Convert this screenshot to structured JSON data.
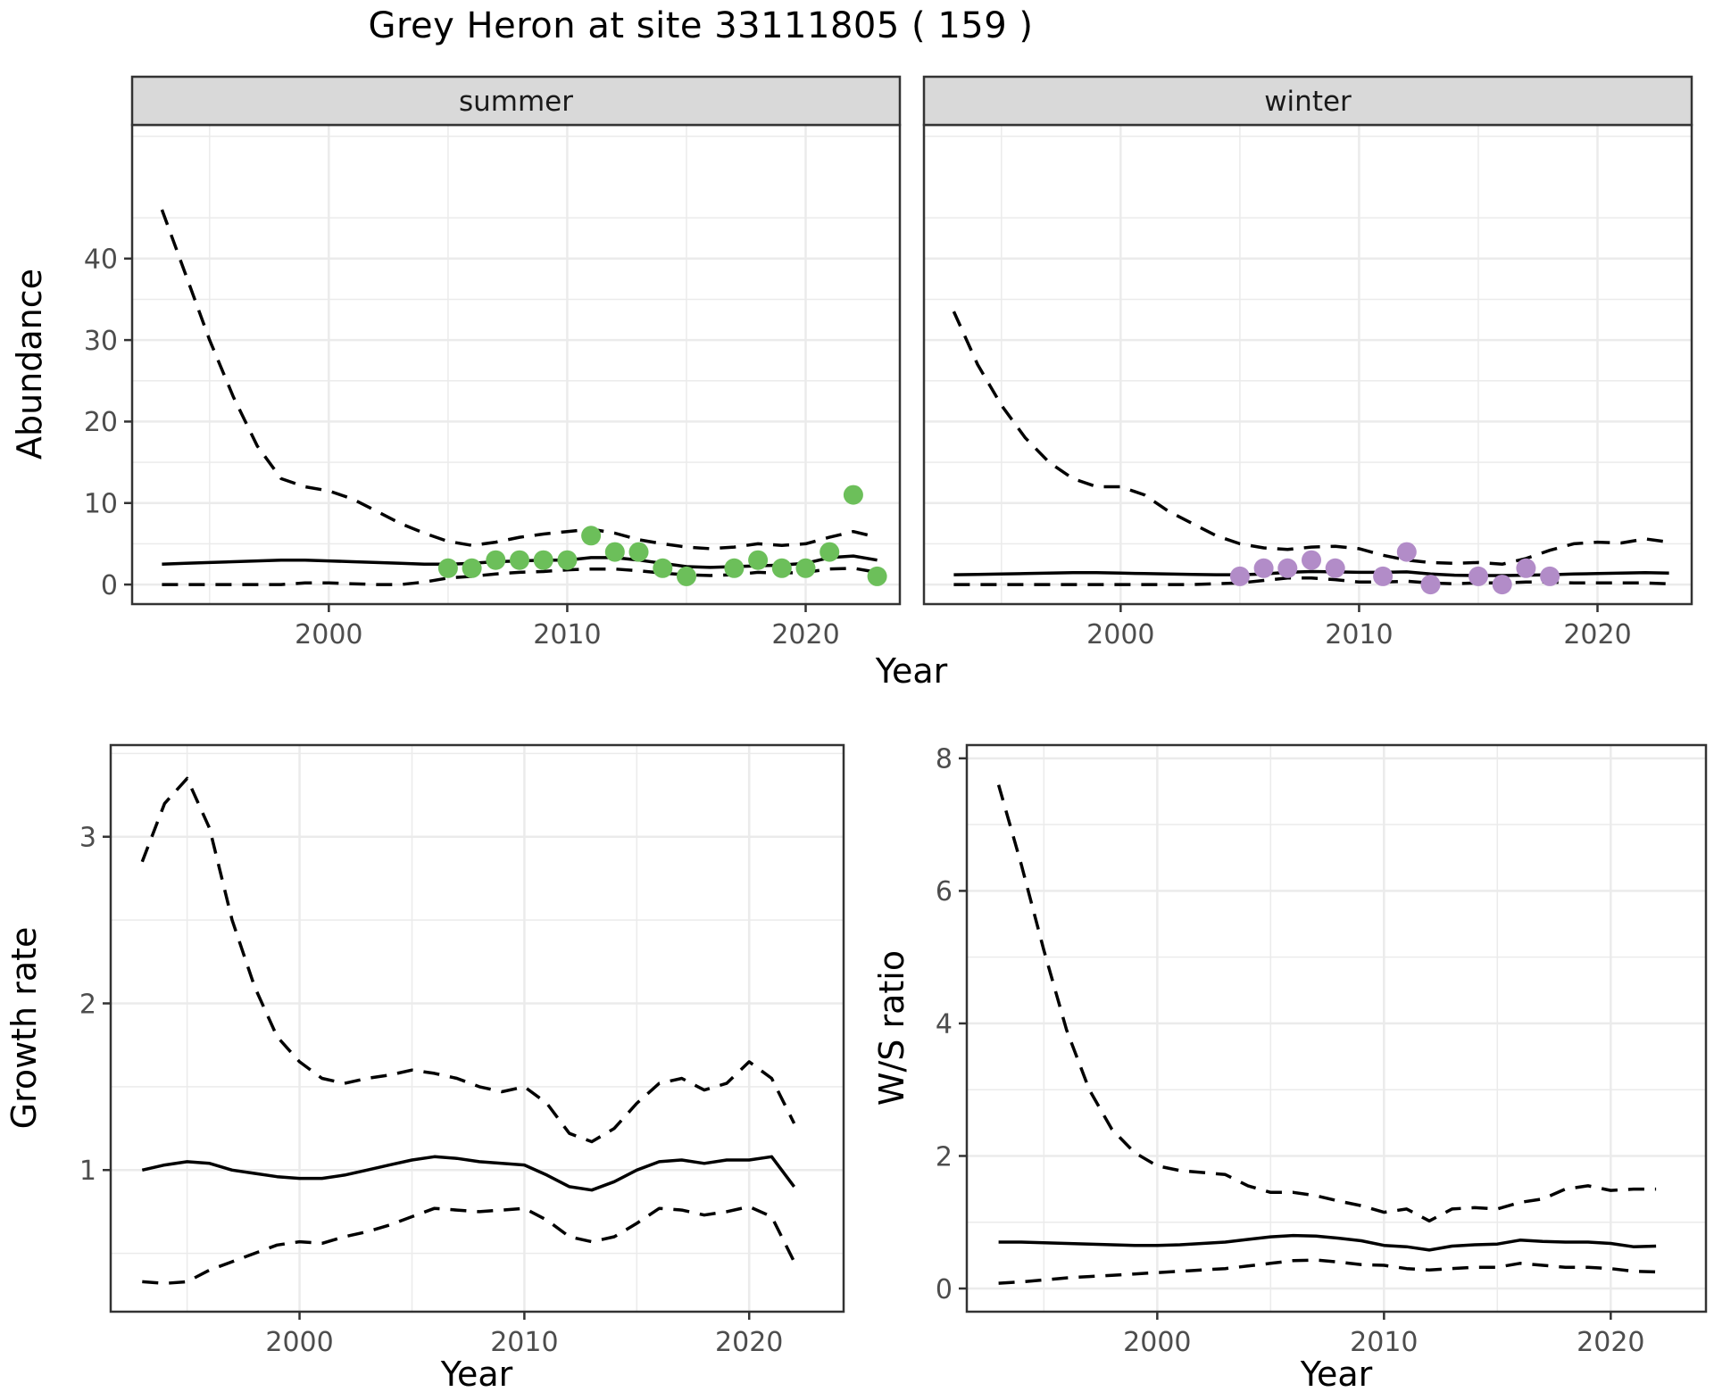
{
  "title": "Grey Heron at site 33111805 ( 159 )",
  "colors": {
    "summer_points": "#6CBF5A",
    "winter_points": "#B28CC8",
    "line": "#000000",
    "grid": "#EBEBEB",
    "panel_bg": "#FFFFFF",
    "panel_border": "#333333",
    "strip_bg": "#D9D9D9",
    "strip_text": "#1A1A1A",
    "tick_mark": "#333333",
    "tick_label": "#4D4D4D",
    "axis_title": "#000000"
  },
  "chart_data": [
    {
      "type": "line",
      "panel": "abundance-summer",
      "strip_label": "summer",
      "xlabel": "Year",
      "ylabel": "Abundance",
      "xlim": [
        1991.75,
        2023.95
      ],
      "ylim": [
        -2.4,
        56.4
      ],
      "xticks": [
        2000,
        2010,
        2020
      ],
      "yticks": [
        0,
        10,
        20,
        30,
        40
      ],
      "x_minor": [
        1995,
        2005,
        2015
      ],
      "y_minor": [
        5,
        15,
        25,
        35,
        45,
        55
      ],
      "grid": true,
      "legend": "none",
      "years": [
        1993,
        1994,
        1995,
        1996,
        1997,
        1998,
        1999,
        2000,
        2001,
        2002,
        2003,
        2004,
        2005,
        2006,
        2007,
        2008,
        2009,
        2010,
        2011,
        2012,
        2013,
        2014,
        2015,
        2016,
        2017,
        2018,
        2019,
        2020,
        2021,
        2022,
        2023
      ],
      "series": [
        {
          "name": "median",
          "style": "solid",
          "values": [
            2.5,
            2.6,
            2.7,
            2.8,
            2.9,
            3.0,
            3.0,
            2.9,
            2.8,
            2.7,
            2.6,
            2.5,
            2.5,
            2.6,
            2.8,
            2.9,
            3.0,
            3.0,
            3.3,
            3.3,
            3.0,
            2.6,
            2.2,
            2.1,
            2.2,
            2.3,
            2.4,
            2.6,
            3.3,
            3.5,
            3.0
          ]
        },
        {
          "name": "upper_ci",
          "style": "dashed",
          "values": [
            46,
            38,
            30,
            23,
            17,
            13,
            12,
            11.5,
            10.5,
            9,
            7.5,
            6.3,
            5.3,
            4.8,
            5.2,
            5.8,
            6.2,
            6.5,
            6.8,
            6.3,
            5.5,
            5.0,
            4.6,
            4.4,
            4.6,
            5.0,
            4.8,
            5.0,
            5.8,
            6.5,
            5.8
          ]
        },
        {
          "name": "lower_ci",
          "style": "dashed",
          "values": [
            0,
            0,
            0,
            0,
            0,
            0,
            0.2,
            0.2,
            0.1,
            0,
            0,
            0.3,
            0.8,
            1.0,
            1.3,
            1.5,
            1.6,
            1.8,
            1.9,
            1.9,
            1.7,
            1.4,
            1.2,
            1.1,
            1.2,
            1.5,
            1.4,
            1.5,
            1.9,
            2.0,
            1.5
          ]
        }
      ],
      "points": {
        "name": "observed-counts-summer",
        "color_key": "summer_points",
        "x": [
          2005,
          2006,
          2007,
          2008,
          2009,
          2010,
          2011,
          2012,
          2013,
          2014,
          2015,
          2017,
          2018,
          2019,
          2020,
          2021,
          2022,
          2023
        ],
        "y": [
          2,
          2,
          3,
          3,
          3,
          3,
          6,
          4,
          4,
          2,
          1,
          2,
          3,
          2,
          2,
          4,
          11,
          1
        ]
      }
    },
    {
      "type": "line",
      "panel": "abundance-winter",
      "strip_label": "winter",
      "xlabel": "Year",
      "ylabel": "Abundance",
      "xlim": [
        1991.75,
        2023.95
      ],
      "ylim": [
        -2.4,
        56.4
      ],
      "xticks": [
        2000,
        2010,
        2020
      ],
      "yticks": [
        0,
        10,
        20,
        30,
        40
      ],
      "x_minor": [
        1995,
        2005,
        2015
      ],
      "y_minor": [
        5,
        15,
        25,
        35,
        45,
        55
      ],
      "grid": true,
      "legend": "none",
      "years": [
        1993,
        1994,
        1995,
        1996,
        1997,
        1998,
        1999,
        2000,
        2001,
        2002,
        2003,
        2004,
        2005,
        2006,
        2007,
        2008,
        2009,
        2010,
        2011,
        2012,
        2013,
        2014,
        2015,
        2016,
        2017,
        2018,
        2019,
        2020,
        2021,
        2022,
        2023
      ],
      "series": [
        {
          "name": "median",
          "style": "solid",
          "values": [
            1.2,
            1.25,
            1.3,
            1.35,
            1.4,
            1.45,
            1.45,
            1.4,
            1.35,
            1.3,
            1.25,
            1.2,
            1.2,
            1.3,
            1.5,
            1.6,
            1.55,
            1.5,
            1.5,
            1.55,
            1.3,
            1.15,
            1.1,
            1.1,
            1.15,
            1.2,
            1.3,
            1.35,
            1.4,
            1.45,
            1.4
          ]
        },
        {
          "name": "upper_ci",
          "style": "dashed",
          "values": [
            33.5,
            27,
            22,
            18,
            15,
            13,
            12,
            12,
            11,
            9,
            7.5,
            6,
            5,
            4.5,
            4.3,
            4.6,
            4.7,
            4.4,
            3.6,
            3.0,
            2.7,
            2.6,
            2.7,
            2.5,
            3.2,
            4.2,
            5.0,
            5.2,
            5.1,
            5.6,
            5.2
          ]
        },
        {
          "name": "lower_ci",
          "style": "dashed",
          "values": [
            0,
            0,
            0,
            0,
            0,
            0,
            0,
            0,
            0,
            0,
            0,
            0.1,
            0.2,
            0.5,
            0.8,
            0.8,
            0.6,
            0.3,
            0.3,
            0.4,
            0.2,
            0.1,
            0.2,
            0.2,
            0.3,
            0.3,
            0.2,
            0.2,
            0.2,
            0.2,
            0.1
          ]
        }
      ],
      "points": {
        "name": "observed-counts-winter",
        "color_key": "winter_points",
        "x": [
          2005,
          2006,
          2007,
          2008,
          2009,
          2011,
          2012,
          2013,
          2015,
          2016,
          2017,
          2018
        ],
        "y": [
          1,
          2,
          2,
          3,
          2,
          1,
          4,
          0,
          1,
          0,
          2,
          1
        ]
      }
    },
    {
      "type": "line",
      "panel": "growth-rate",
      "strip_label": null,
      "xlabel": "Year",
      "ylabel": "Growth rate",
      "xlim": [
        1991.6,
        2024.2
      ],
      "ylim": [
        0.15,
        3.55
      ],
      "xticks": [
        2000,
        2010,
        2020
      ],
      "yticks": [
        1,
        2,
        3
      ],
      "x_minor": [
        1995,
        2005,
        2015
      ],
      "y_minor": [
        0.5,
        1.5,
        2.5,
        3.5
      ],
      "grid": true,
      "legend": "none",
      "years": [
        1993,
        1994,
        1995,
        1996,
        1997,
        1998,
        1999,
        2000,
        2001,
        2002,
        2003,
        2004,
        2005,
        2006,
        2007,
        2008,
        2009,
        2010,
        2011,
        2012,
        2013,
        2014,
        2015,
        2016,
        2017,
        2018,
        2019,
        2020,
        2021,
        2022
      ],
      "series": [
        {
          "name": "median",
          "style": "solid",
          "values": [
            1.0,
            1.03,
            1.05,
            1.04,
            1.0,
            0.98,
            0.96,
            0.95,
            0.95,
            0.97,
            1.0,
            1.03,
            1.06,
            1.08,
            1.07,
            1.05,
            1.04,
            1.03,
            0.97,
            0.9,
            0.88,
            0.93,
            1.0,
            1.05,
            1.06,
            1.04,
            1.06,
            1.06,
            1.08,
            0.9
          ]
        },
        {
          "name": "upper_ci",
          "style": "dashed",
          "values": [
            2.85,
            3.2,
            3.35,
            3.05,
            2.5,
            2.1,
            1.8,
            1.65,
            1.55,
            1.52,
            1.55,
            1.57,
            1.6,
            1.58,
            1.55,
            1.5,
            1.47,
            1.5,
            1.4,
            1.22,
            1.17,
            1.25,
            1.4,
            1.52,
            1.55,
            1.48,
            1.52,
            1.65,
            1.55,
            1.28
          ]
        },
        {
          "name": "lower_ci",
          "style": "dashed",
          "values": [
            0.33,
            0.32,
            0.33,
            0.4,
            0.45,
            0.5,
            0.55,
            0.57,
            0.56,
            0.6,
            0.63,
            0.67,
            0.72,
            0.77,
            0.76,
            0.75,
            0.76,
            0.77,
            0.7,
            0.6,
            0.57,
            0.6,
            0.68,
            0.77,
            0.76,
            0.73,
            0.75,
            0.78,
            0.72,
            0.45
          ]
        }
      ],
      "points": null
    },
    {
      "type": "line",
      "panel": "ws-ratio",
      "strip_label": null,
      "xlabel": "Year",
      "ylabel": "W/S ratio",
      "xlim": [
        1991.6,
        2024.2
      ],
      "ylim": [
        -0.35,
        8.2
      ],
      "xticks": [
        2000,
        2010,
        2020
      ],
      "yticks": [
        0,
        2,
        4,
        6,
        8
      ],
      "x_minor": [
        1995,
        2005,
        2015
      ],
      "y_minor": [
        1,
        3,
        5,
        7
      ],
      "grid": true,
      "legend": "none",
      "years": [
        1993,
        1994,
        1995,
        1996,
        1997,
        1998,
        1999,
        2000,
        2001,
        2002,
        2003,
        2004,
        2005,
        2006,
        2007,
        2008,
        2009,
        2010,
        2011,
        2012,
        2013,
        2014,
        2015,
        2016,
        2017,
        2018,
        2019,
        2020,
        2021,
        2022
      ],
      "series": [
        {
          "name": "median",
          "style": "solid",
          "values": [
            0.7,
            0.7,
            0.69,
            0.68,
            0.67,
            0.66,
            0.65,
            0.65,
            0.66,
            0.68,
            0.7,
            0.74,
            0.78,
            0.8,
            0.79,
            0.76,
            0.72,
            0.65,
            0.63,
            0.58,
            0.64,
            0.66,
            0.67,
            0.73,
            0.71,
            0.7,
            0.7,
            0.68,
            0.63,
            0.64
          ]
        },
        {
          "name": "upper_ci",
          "style": "dashed",
          "values": [
            7.6,
            6.4,
            5.1,
            3.9,
            3.0,
            2.4,
            2.05,
            1.85,
            1.78,
            1.75,
            1.72,
            1.55,
            1.45,
            1.45,
            1.4,
            1.32,
            1.25,
            1.15,
            1.2,
            1.02,
            1.2,
            1.22,
            1.2,
            1.3,
            1.35,
            1.5,
            1.55,
            1.48,
            1.5,
            1.5
          ]
        },
        {
          "name": "lower_ci",
          "style": "dashed",
          "values": [
            0.08,
            0.1,
            0.13,
            0.16,
            0.18,
            0.2,
            0.22,
            0.24,
            0.26,
            0.28,
            0.3,
            0.34,
            0.38,
            0.42,
            0.43,
            0.4,
            0.36,
            0.35,
            0.3,
            0.28,
            0.3,
            0.32,
            0.32,
            0.38,
            0.35,
            0.32,
            0.32,
            0.3,
            0.26,
            0.25
          ]
        }
      ],
      "points": null
    }
  ]
}
